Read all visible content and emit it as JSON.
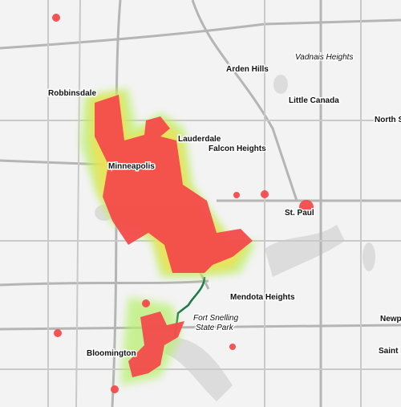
{
  "map": {
    "labels": [
      {
        "name": "vadnais-heights",
        "text": "Vadnais Heights"
      },
      {
        "name": "arden-hills",
        "text": "Arden Hills"
      },
      {
        "name": "little-canada",
        "text": "Little Canada"
      },
      {
        "name": "robbinsdale",
        "text": "Robbinsdale"
      },
      {
        "name": "north-st-paul",
        "text": "North St"
      },
      {
        "name": "lauderdale",
        "text": "Lauderdale"
      },
      {
        "name": "falcon-heights",
        "text": "Falcon Heights"
      },
      {
        "name": "minneapolis",
        "text": "Minneapolis"
      },
      {
        "name": "st-paul",
        "text": "St. Paul"
      },
      {
        "name": "mendota-heights",
        "text": "Mendota Heights"
      },
      {
        "name": "fort-snelling-1",
        "text": "Fort Snelling"
      },
      {
        "name": "fort-snelling-2",
        "text": "State Park"
      },
      {
        "name": "bloomington",
        "text": "Bloomington"
      },
      {
        "name": "newport",
        "text": "Newp"
      },
      {
        "name": "saint-paul-park",
        "text": "Saint P"
      }
    ]
  }
}
